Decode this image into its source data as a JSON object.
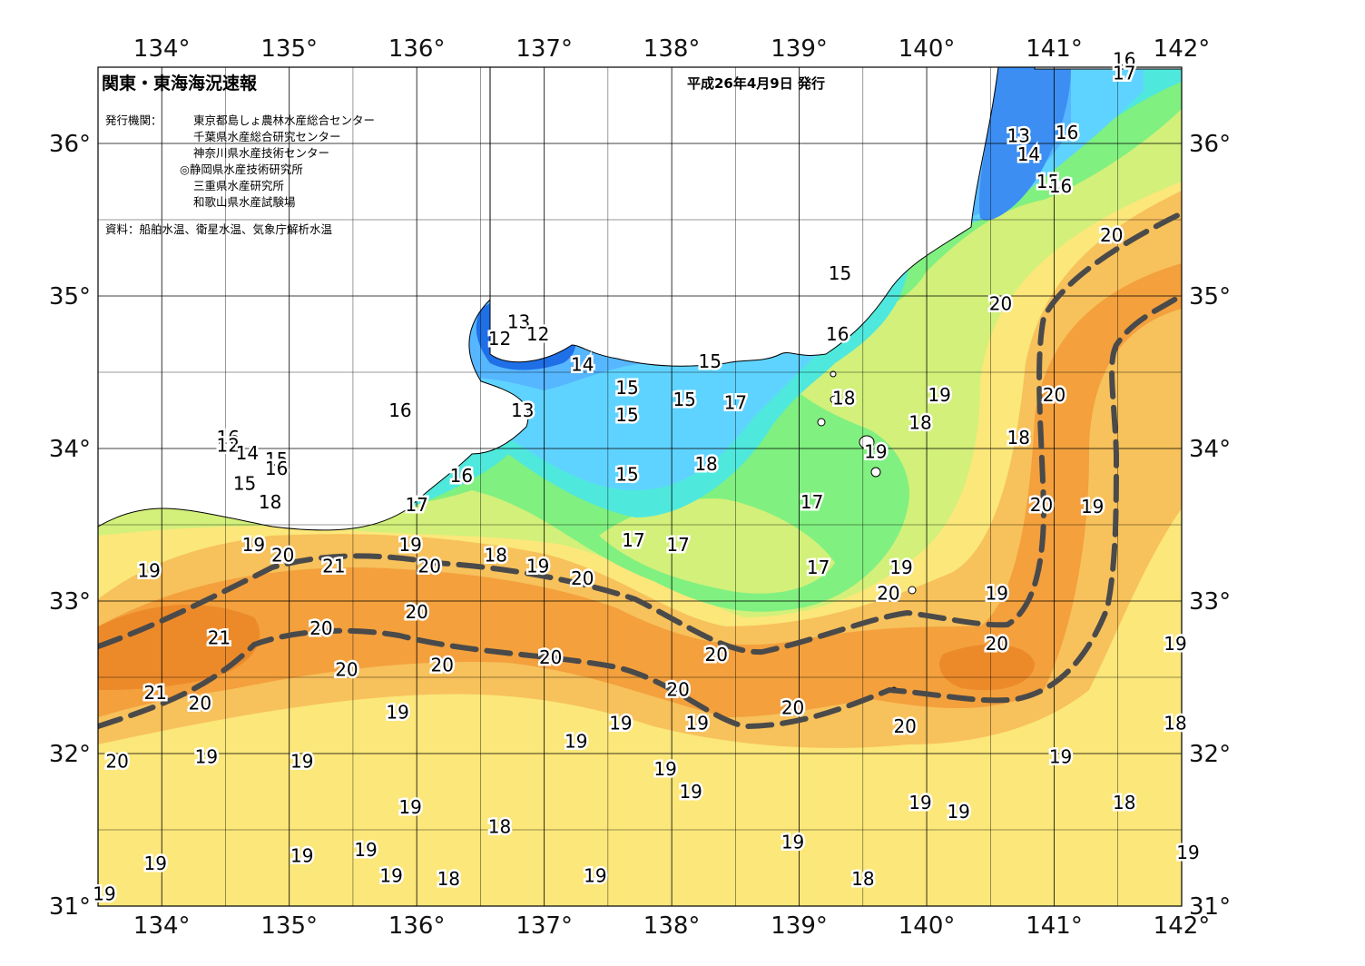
{
  "title": "関東・東海海況速報",
  "issue_date": "平成26年4月9日 発行",
  "agencies_label": "発行機関：",
  "agencies": [
    "東京都島しょ農林水産総合センター",
    "千葉県水産総合研究センター",
    "神奈川県水産技術センター",
    "◎静岡県水産技術研究所",
    "三重県水産研究所",
    "和歌山県水産試験場"
  ],
  "sources": "資料：船舶水温、衛星水温、気象庁解析水温",
  "lon_labels": [
    "134°",
    "135°",
    "136°",
    "137°",
    "138°",
    "139°",
    "140°",
    "141°",
    "142°"
  ],
  "lat_labels": [
    "36°",
    "35°",
    "34°",
    "33°",
    "32°",
    "31°"
  ],
  "colors": {
    "t12": "#1f6fe6",
    "t13": "#3c8ef2",
    "t14": "#56b6ff",
    "t15": "#5fd3ff",
    "t16": "#4fe8dd",
    "t17": "#80f080",
    "t18": "#d2f07a",
    "t19": "#fbe77a",
    "t20": "#f7c15b",
    "t20b": "#f3a03d",
    "t21": "#ec8a2a",
    "land": "#ffffff",
    "current": "#4a4a4a"
  },
  "temp_labels": [
    {
      "t": "16",
      "lon": 141.55,
      "lat": 36.55
    },
    {
      "t": "17",
      "lon": 141.55,
      "lat": 36.46
    },
    {
      "t": "13",
      "lon": 140.72,
      "lat": 36.05
    },
    {
      "t": "16",
      "lon": 141.1,
      "lat": 36.07
    },
    {
      "t": "14",
      "lon": 140.8,
      "lat": 35.93
    },
    {
      "t": "15",
      "lon": 140.95,
      "lat": 35.75
    },
    {
      "t": "16",
      "lon": 141.05,
      "lat": 35.72
    },
    {
      "t": "20",
      "lon": 141.45,
      "lat": 35.4
    },
    {
      "t": "15",
      "lon": 139.32,
      "lat": 35.15
    },
    {
      "t": "20",
      "lon": 140.58,
      "lat": 34.95
    },
    {
      "t": "12",
      "lon": 136.65,
      "lat": 34.72
    },
    {
      "t": "13",
      "lon": 136.8,
      "lat": 34.83
    },
    {
      "t": "12",
      "lon": 136.95,
      "lat": 34.75
    },
    {
      "t": "16",
      "lon": 139.3,
      "lat": 34.75
    },
    {
      "t": "14",
      "lon": 137.3,
      "lat": 34.55
    },
    {
      "t": "15",
      "lon": 138.3,
      "lat": 34.57
    },
    {
      "t": "15",
      "lon": 137.65,
      "lat": 34.4
    },
    {
      "t": "15",
      "lon": 138.1,
      "lat": 34.32
    },
    {
      "t": "17",
      "lon": 138.5,
      "lat": 34.3
    },
    {
      "t": "18",
      "lon": 139.35,
      "lat": 34.33
    },
    {
      "t": "19",
      "lon": 140.1,
      "lat": 34.35
    },
    {
      "t": "20",
      "lon": 141.0,
      "lat": 34.35
    },
    {
      "t": "16",
      "lon": 135.87,
      "lat": 34.25
    },
    {
      "t": "13",
      "lon": 136.83,
      "lat": 34.25
    },
    {
      "t": "15",
      "lon": 137.65,
      "lat": 34.22
    },
    {
      "t": "18",
      "lon": 139.95,
      "lat": 34.17
    },
    {
      "t": "18",
      "lon": 140.72,
      "lat": 34.07
    },
    {
      "t": "16",
      "lon": 134.52,
      "lat": 34.07
    },
    {
      "t": "12",
      "lon": 134.52,
      "lat": 34.02
    },
    {
      "t": "14",
      "lon": 134.67,
      "lat": 33.97
    },
    {
      "t": "15",
      "lon": 134.9,
      "lat": 33.93
    },
    {
      "t": "19",
      "lon": 139.6,
      "lat": 33.98
    },
    {
      "t": "16",
      "lon": 134.9,
      "lat": 33.87
    },
    {
      "t": "18",
      "lon": 138.27,
      "lat": 33.9
    },
    {
      "t": "15",
      "lon": 137.65,
      "lat": 33.83
    },
    {
      "t": "16",
      "lon": 136.35,
      "lat": 33.82
    },
    {
      "t": "15",
      "lon": 134.65,
      "lat": 33.77
    },
    {
      "t": "18",
      "lon": 134.85,
      "lat": 33.65
    },
    {
      "t": "17",
      "lon": 139.1,
      "lat": 33.65
    },
    {
      "t": "17",
      "lon": 136.0,
      "lat": 33.63
    },
    {
      "t": "20",
      "lon": 140.9,
      "lat": 33.63
    },
    {
      "t": "19",
      "lon": 141.3,
      "lat": 33.62
    },
    {
      "t": "17",
      "lon": 137.7,
      "lat": 33.4
    },
    {
      "t": "17",
      "lon": 138.05,
      "lat": 33.37
    },
    {
      "t": "19",
      "lon": 134.72,
      "lat": 33.37
    },
    {
      "t": "19",
      "lon": 135.95,
      "lat": 33.37
    },
    {
      "t": "20",
      "lon": 134.95,
      "lat": 33.3
    },
    {
      "t": "18",
      "lon": 136.62,
      "lat": 33.3
    },
    {
      "t": "21",
      "lon": 135.35,
      "lat": 33.23
    },
    {
      "t": "20",
      "lon": 136.1,
      "lat": 33.23
    },
    {
      "t": "19",
      "lon": 136.95,
      "lat": 33.23
    },
    {
      "t": "17",
      "lon": 139.15,
      "lat": 33.22
    },
    {
      "t": "19",
      "lon": 139.8,
      "lat": 33.22
    },
    {
      "t": "19",
      "lon": 133.9,
      "lat": 33.2
    },
    {
      "t": "20",
      "lon": 137.3,
      "lat": 33.15
    },
    {
      "t": "20",
      "lon": 139.7,
      "lat": 33.05
    },
    {
      "t": "19",
      "lon": 140.55,
      "lat": 33.05
    },
    {
      "t": "20",
      "lon": 136.0,
      "lat": 32.93
    },
    {
      "t": "20",
      "lon": 135.25,
      "lat": 32.82
    },
    {
      "t": "21",
      "lon": 134.45,
      "lat": 32.76
    },
    {
      "t": "20",
      "lon": 140.55,
      "lat": 32.72
    },
    {
      "t": "19",
      "lon": 141.95,
      "lat": 32.72
    },
    {
      "t": "20",
      "lon": 138.35,
      "lat": 32.65
    },
    {
      "t": "20",
      "lon": 137.05,
      "lat": 32.63
    },
    {
      "t": "20",
      "lon": 136.2,
      "lat": 32.58
    },
    {
      "t": "20",
      "lon": 135.45,
      "lat": 32.55
    },
    {
      "t": "20",
      "lon": 138.05,
      "lat": 32.42
    },
    {
      "t": "21",
      "lon": 133.95,
      "lat": 32.4
    },
    {
      "t": "20",
      "lon": 134.3,
      "lat": 32.33
    },
    {
      "t": "20",
      "lon": 138.95,
      "lat": 32.3
    },
    {
      "t": "19",
      "lon": 135.85,
      "lat": 32.27
    },
    {
      "t": "19",
      "lon": 138.2,
      "lat": 32.2
    },
    {
      "t": "19",
      "lon": 137.6,
      "lat": 32.2
    },
    {
      "t": "18",
      "lon": 141.95,
      "lat": 32.2
    },
    {
      "t": "20",
      "lon": 139.83,
      "lat": 32.18
    },
    {
      "t": "19",
      "lon": 137.25,
      "lat": 32.08
    },
    {
      "t": "19",
      "lon": 134.35,
      "lat": 31.98
    },
    {
      "t": "20",
      "lon": 133.65,
      "lat": 31.95
    },
    {
      "t": "19",
      "lon": 135.1,
      "lat": 31.95
    },
    {
      "t": "19",
      "lon": 141.05,
      "lat": 31.98
    },
    {
      "t": "19",
      "lon": 137.95,
      "lat": 31.9
    },
    {
      "t": "19",
      "lon": 138.15,
      "lat": 31.75
    },
    {
      "t": "19",
      "lon": 139.95,
      "lat": 31.68
    },
    {
      "t": "19",
      "lon": 135.95,
      "lat": 31.65
    },
    {
      "t": "18",
      "lon": 141.55,
      "lat": 31.68
    },
    {
      "t": "19",
      "lon": 140.25,
      "lat": 31.62
    },
    {
      "t": "18",
      "lon": 136.65,
      "lat": 31.52
    },
    {
      "t": "19",
      "lon": 138.95,
      "lat": 31.42
    },
    {
      "t": "19",
      "lon": 135.6,
      "lat": 31.37
    },
    {
      "t": "19",
      "lon": 135.1,
      "lat": 31.33
    },
    {
      "t": "19",
      "lon": 142.05,
      "lat": 31.35
    },
    {
      "t": "19",
      "lon": 133.95,
      "lat": 31.28
    },
    {
      "t": "19",
      "lon": 135.8,
      "lat": 31.2
    },
    {
      "t": "18",
      "lon": 136.25,
      "lat": 31.18
    },
    {
      "t": "19",
      "lon": 137.4,
      "lat": 31.2
    },
    {
      "t": "18",
      "lon": 139.5,
      "lat": 31.18
    },
    {
      "t": "19",
      "lon": 133.55,
      "lat": 31.08
    }
  ]
}
